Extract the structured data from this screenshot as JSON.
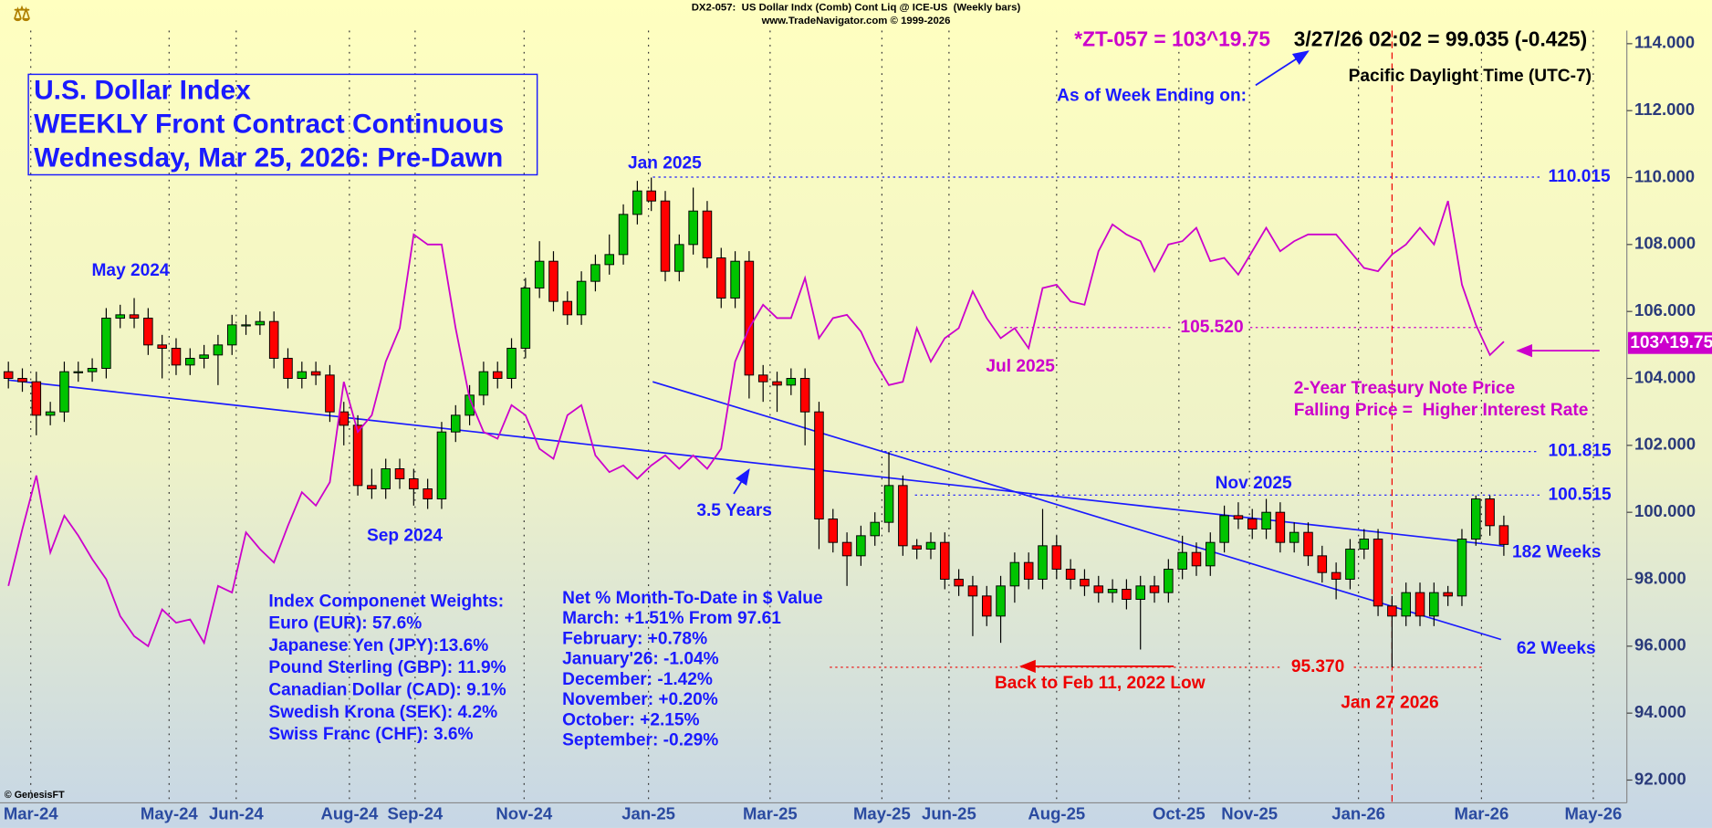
{
  "chart_data": {
    "type": "candlestick",
    "header": [
      "DX2-057:  US Dollar Indx (Comb) Cont Liq @ ICE-US  (Weekly bars)",
      "www.TradeNavigator.com © 1999-2026"
    ],
    "title_lines": [
      "U.S. Dollar Index",
      "WEEKLY Front Contract Continuous",
      "Wednesday, Mar 25, 2026: Pre-Dawn"
    ],
    "xlim": [
      -0.6,
      115.8
    ],
    "xticks": [
      {
        "value": 1.6,
        "label": "Mar-24"
      },
      {
        "value": 11.5,
        "label": "May-24"
      },
      {
        "value": 16.3,
        "label": "Jun-24"
      },
      {
        "value": 24.4,
        "label": "Aug-24"
      },
      {
        "value": 29.1,
        "label": "Sep-24"
      },
      {
        "value": 36.9,
        "label": "Nov-24"
      },
      {
        "value": 45.8,
        "label": "Jan-25"
      },
      {
        "value": 54.5,
        "label": "Mar-25"
      },
      {
        "value": 62.5,
        "label": "May-25"
      },
      {
        "value": 67.3,
        "label": "Jun-25"
      },
      {
        "value": 75,
        "label": "Aug-25"
      },
      {
        "value": 83.75,
        "label": "Oct-25"
      },
      {
        "value": 88.8,
        "label": "Nov-25"
      },
      {
        "value": 96.6,
        "label": "Jan-26"
      },
      {
        "value": 105.4,
        "label": "Mar-26"
      },
      {
        "value": 113.4,
        "label": "May-26"
      }
    ],
    "ylim": [
      91.32,
      114.39
    ],
    "yticks": [
      {
        "value": 92,
        "label": "92.000"
      },
      {
        "value": 94,
        "label": "94.000"
      },
      {
        "value": 96,
        "label": "96.000"
      },
      {
        "value": 98,
        "label": "98.000"
      },
      {
        "value": 100,
        "label": "100.000"
      },
      {
        "value": 102,
        "label": "102.000"
      },
      {
        "value": 104,
        "label": "104.000"
      },
      {
        "value": 106,
        "label": "106.000"
      },
      {
        "value": 108,
        "label": "108.000"
      },
      {
        "value": 110,
        "label": "110.000"
      },
      {
        "value": 112,
        "label": "112.000"
      },
      {
        "value": 114,
        "label": "114.000"
      }
    ],
    "grid": true,
    "up_color": "#00c400",
    "down_color": "#ff0000",
    "series": [
      {
        "type": "candlestick",
        "open": [
          104.2,
          104.0,
          103.9,
          102.9,
          103.0,
          104.2,
          104.2,
          104.3,
          105.8,
          105.9,
          105.8,
          105.0,
          104.9,
          104.4,
          104.6,
          104.7,
          105.0,
          105.6,
          105.6,
          105.7,
          104.6,
          104.0,
          104.2,
          104.1,
          103.0,
          102.6,
          100.8,
          100.7,
          101.3,
          101.0,
          100.7,
          100.4,
          102.4,
          102.9,
          103.5,
          104.2,
          104.0,
          104.9,
          106.7,
          107.5,
          106.3,
          105.9,
          106.9,
          107.4,
          107.7,
          108.9,
          109.6,
          109.3,
          107.2,
          108.0,
          109.0,
          107.6,
          106.4,
          107.5,
          104.1,
          103.9,
          103.8,
          104.0,
          103.0,
          99.8,
          99.1,
          98.7,
          99.3,
          99.7,
          100.8,
          99.0,
          98.9,
          99.1,
          98.0,
          97.8,
          97.5,
          96.9,
          97.8,
          98.5,
          98.0,
          99.0,
          98.3,
          98.0,
          97.8,
          97.6,
          97.7,
          97.4,
          97.8,
          97.6,
          98.3,
          98.8,
          98.4,
          99.1,
          99.9,
          99.8,
          99.5,
          100.0,
          99.1,
          99.4,
          98.7,
          98.2,
          98.0,
          98.9,
          99.2,
          97.2,
          96.9,
          97.6,
          96.9,
          97.6,
          97.5,
          99.2,
          100.4,
          99.6
        ],
        "high": [
          104.5,
          104.3,
          104.2,
          103.3,
          104.5,
          104.5,
          104.6,
          106.1,
          106.2,
          106.4,
          106.1,
          105.3,
          105.2,
          104.9,
          105.0,
          105.3,
          105.9,
          105.9,
          106.0,
          106.0,
          104.9,
          104.5,
          104.5,
          104.4,
          103.3,
          102.9,
          101.3,
          101.6,
          101.6,
          101.3,
          101.0,
          102.7,
          103.2,
          103.8,
          104.5,
          104.5,
          105.2,
          107.0,
          108.1,
          107.8,
          106.6,
          107.2,
          107.7,
          108.3,
          109.2,
          109.9,
          110.0,
          109.6,
          108.3,
          109.7,
          109.3,
          107.9,
          107.8,
          107.8,
          104.4,
          104.2,
          104.3,
          104.3,
          103.3,
          100.1,
          99.4,
          99.6,
          100.0,
          101.8,
          101.1,
          99.2,
          99.4,
          99.4,
          98.3,
          98.1,
          97.8,
          98.1,
          98.8,
          98.8,
          100.1,
          99.3,
          98.6,
          98.3,
          98.1,
          98.0,
          98.0,
          98.1,
          98.1,
          98.6,
          99.3,
          99.1,
          99.4,
          100.2,
          100.3,
          100.1,
          100.4,
          100.3,
          99.7,
          99.7,
          99.0,
          98.5,
          99.2,
          99.5,
          99.5,
          97.5,
          97.9,
          97.9,
          97.9,
          97.8,
          99.5,
          100.5,
          100.5,
          99.9
        ],
        "low": [
          103.7,
          103.6,
          102.3,
          102.6,
          102.7,
          103.9,
          103.9,
          104.0,
          105.5,
          105.5,
          104.7,
          104.0,
          104.1,
          104.1,
          104.3,
          103.8,
          104.7,
          105.3,
          105.3,
          104.3,
          103.7,
          103.7,
          103.8,
          102.7,
          102.0,
          100.5,
          100.4,
          100.4,
          100.7,
          100.2,
          100.1,
          100.1,
          102.1,
          102.6,
          103.2,
          103.7,
          103.7,
          104.6,
          106.4,
          106.0,
          105.6,
          105.6,
          106.6,
          107.1,
          107.4,
          108.6,
          109.0,
          106.9,
          106.9,
          107.7,
          107.3,
          106.1,
          106.1,
          103.4,
          103.3,
          103.0,
          103.5,
          102.0,
          98.9,
          98.8,
          97.8,
          98.4,
          99.0,
          99.4,
          98.7,
          98.6,
          98.6,
          97.7,
          97.5,
          96.3,
          96.6,
          96.1,
          97.3,
          97.7,
          97.7,
          98.0,
          97.7,
          97.5,
          97.3,
          97.3,
          97.1,
          95.9,
          97.3,
          97.3,
          98.0,
          98.1,
          98.1,
          98.8,
          99.5,
          99.2,
          99.2,
          98.8,
          98.8,
          98.4,
          97.9,
          97.4,
          97.7,
          98.6,
          96.9,
          95.37,
          96.6,
          96.6,
          96.6,
          97.2,
          97.2,
          99.0,
          99.3,
          98.7
        ],
        "close": [
          104.0,
          103.9,
          102.9,
          103.0,
          104.2,
          104.2,
          104.3,
          105.8,
          105.9,
          105.8,
          105.0,
          104.9,
          104.4,
          104.6,
          104.7,
          105.0,
          105.6,
          105.6,
          105.7,
          104.6,
          104.0,
          104.2,
          104.1,
          103.0,
          102.6,
          100.8,
          100.7,
          101.3,
          101.0,
          100.7,
          100.4,
          102.4,
          102.9,
          103.5,
          104.2,
          104.0,
          104.9,
          106.7,
          107.5,
          106.3,
          105.9,
          106.9,
          107.4,
          107.7,
          108.9,
          109.6,
          109.3,
          107.2,
          108.0,
          109.0,
          107.6,
          106.4,
          107.5,
          104.1,
          103.9,
          103.8,
          104.0,
          103.0,
          99.8,
          99.1,
          98.7,
          99.3,
          99.7,
          100.8,
          99.0,
          98.9,
          99.1,
          98.0,
          97.8,
          97.5,
          96.9,
          97.8,
          98.5,
          98.0,
          99.0,
          98.3,
          98.0,
          97.8,
          97.6,
          97.7,
          97.4,
          97.8,
          97.6,
          98.3,
          98.8,
          98.4,
          99.1,
          99.9,
          99.8,
          99.5,
          100.0,
          99.1,
          99.4,
          98.7,
          98.2,
          98.0,
          98.9,
          99.2,
          97.2,
          96.9,
          97.6,
          96.9,
          97.6,
          97.5,
          99.2,
          100.4,
          99.6,
          99.04
        ]
      },
      {
        "type": "line",
        "color": "#cc00cc",
        "values": [
          97.8,
          99.5,
          101.1,
          98.8,
          99.9,
          99.3,
          98.6,
          98.0,
          96.9,
          96.3,
          96.0,
          97.1,
          96.7,
          96.8,
          96.1,
          97.8,
          97.6,
          99.4,
          98.9,
          98.5,
          99.6,
          100.6,
          100.2,
          100.9,
          103.9,
          102.4,
          102.9,
          104.5,
          105.5,
          108.3,
          108.0,
          108.0,
          105.5,
          103.4,
          102.4,
          102.2,
          103.2,
          102.9,
          101.9,
          101.6,
          102.9,
          103.2,
          101.7,
          101.2,
          101.4,
          101.0,
          101.4,
          101.7,
          101.3,
          101.7,
          101.3,
          101.9,
          104.5,
          105.5,
          106.2,
          105.8,
          105.8,
          107.0,
          105.2,
          105.8,
          105.9,
          105.4,
          104.5,
          103.8,
          103.9,
          105.5,
          104.5,
          105.2,
          105.5,
          106.6,
          105.8,
          105.2,
          105.5,
          104.9,
          106.7,
          106.8,
          106.3,
          106.2,
          107.8,
          108.6,
          108.3,
          108.1,
          107.2,
          108.0,
          108.1,
          108.5,
          107.5,
          107.6,
          107.1,
          107.8,
          108.5,
          107.8,
          108.1,
          108.3,
          108.3,
          108.3,
          107.8,
          107.3,
          107.2,
          107.7,
          108.0,
          108.5,
          108.0,
          109.3,
          106.8,
          105.6,
          104.7,
          105.1
        ]
      }
    ],
    "trendlines": [
      {
        "x": [
          0,
          107
        ],
        "y": [
          103.95,
          98.99
        ],
        "color": "#1a1aff"
      },
      {
        "x": [
          46.1,
          106.8
        ],
        "y": [
          103.9,
          96.2
        ],
        "color": "#1a1aff"
      }
    ],
    "levels": [
      {
        "value": 110.015,
        "color": "#1a1aff"
      },
      {
        "value": 105.52,
        "label": "105.520",
        "color": "#cc00cc"
      },
      {
        "value": 101.815,
        "color": "#1a1aff"
      },
      {
        "value": 100.515,
        "color": "#1a1aff"
      },
      {
        "value": 95.37,
        "label": "95.370",
        "color": "#ee0000"
      }
    ],
    "event_line": {
      "x": 99,
      "color": "#ee0000"
    },
    "tag": {
      "text": "103^19.75",
      "color": "#cc00cc"
    },
    "annotations": [
      {
        "text": "*ZT-057 = 103^19.75",
        "color": "#cc00cc"
      },
      {
        "text": "3/27/26 02:02 = 99.035 (-0.425)",
        "color": "#000000"
      },
      {
        "text": "As of Week Ending on:",
        "color": "#1a1aff"
      },
      {
        "text": "Pacific Daylight Time (UTC-7)",
        "color": "#000000"
      },
      {
        "text": "May 2024",
        "color": "#1a1aff"
      },
      {
        "text": "Sep 2024",
        "color": "#1a1aff"
      },
      {
        "text": "Jan 2025",
        "color": "#1a1aff"
      },
      {
        "text": "Jul 2025",
        "color": "#cc00cc"
      },
      {
        "text": "Nov 2025",
        "color": "#1a1aff"
      },
      {
        "text": "Jan 27 2026",
        "color": "#ee0000"
      },
      {
        "text": "3.5 Years",
        "color": "#1a1aff"
      },
      {
        "text": "182 Weeks",
        "color": "#1a1aff"
      },
      {
        "text": "62 Weeks",
        "color": "#1a1aff"
      },
      {
        "text": "Back to Feb 11, 2022 Low",
        "color": "#ee0000"
      },
      {
        "text": "2-Year Treasury Note Price",
        "color": "#cc00cc"
      },
      {
        "text": "Falling Price =  Higher Interest Rate",
        "color": "#cc00cc"
      },
      {
        "text": "© GenesisFT",
        "color": "#000000"
      }
    ],
    "weights": {
      "title": "Index Componenet Weights:",
      "lines": [
        "Euro (EUR): 57.6%",
        "Japanese Yen (JPY):13.6%",
        "Pound Sterling (GBP): 11.9%",
        "Canadian Dollar (CAD): 9.1%",
        "Swedish Krona (SEK): 4.2%",
        "Swiss Franc (CHF): 3.6%"
      ]
    },
    "monthly_change": {
      "title": "Net % Month-To-Date in $ Value",
      "lines": [
        "March: +1.51% From 97.61",
        "February: +0.78%",
        "January'26: -1.04%",
        "December: -1.42%",
        "November: +0.20%",
        "October: +2.15%",
        "September: -0.29%"
      ]
    }
  }
}
